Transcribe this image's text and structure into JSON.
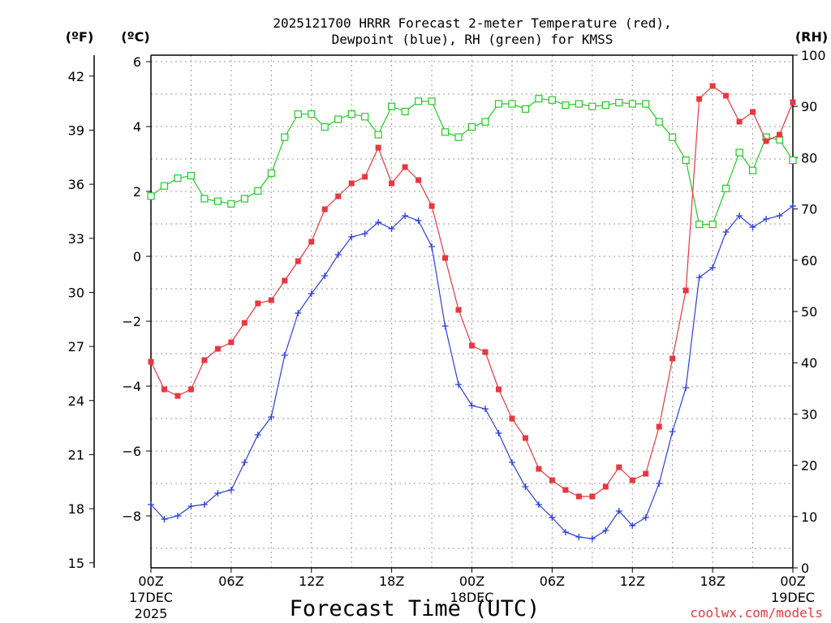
{
  "chart_data": {
    "type": "line",
    "title_line1": "2025121700 HRRR Forecast 2-meter Temperature (red),",
    "title_line2": "Dewpoint (blue), RH (green) for KMSS",
    "xlabel": "Forecast Time (UTC)",
    "credit": "coolwx.com/models",
    "units": {
      "fahrenheit": "(ºF)",
      "celsius": "(ºC)",
      "rh": "(RH)"
    },
    "colors": {
      "temperature": "#e8373f",
      "dewpoint": "#2a3fe0",
      "rh": "#22cc22",
      "axis": "#000000",
      "grid": "#9a9a9a"
    },
    "x": {
      "start_hour": 0,
      "end_hour": 48
    },
    "x_ticks": [
      {
        "hour": 0,
        "line1": "00Z",
        "line2": "17DEC",
        "line3": "2025"
      },
      {
        "hour": 6,
        "line1": "06Z",
        "line2": "",
        "line3": ""
      },
      {
        "hour": 12,
        "line1": "12Z",
        "line2": "",
        "line3": ""
      },
      {
        "hour": 18,
        "line1": "18Z",
        "line2": "",
        "line3": ""
      },
      {
        "hour": 24,
        "line1": "00Z",
        "line2": "18DEC",
        "line3": ""
      },
      {
        "hour": 30,
        "line1": "06Z",
        "line2": "",
        "line3": ""
      },
      {
        "hour": 36,
        "line1": "12Z",
        "line2": "",
        "line3": ""
      },
      {
        "hour": 42,
        "line1": "18Z",
        "line2": "",
        "line3": ""
      },
      {
        "hour": 48,
        "line1": "00Z",
        "line2": "19DEC",
        "line3": ""
      }
    ],
    "celsius_axis": {
      "ylim": [
        -9.6,
        6.2
      ],
      "ticks": [
        "6",
        "4",
        "2",
        "0",
        "−2",
        "−4",
        "−6",
        "−8"
      ],
      "tick_values": [
        6,
        4,
        2,
        0,
        -2,
        -4,
        -6,
        -8
      ]
    },
    "fahrenheit_axis": {
      "ticks": [
        "42",
        "39",
        "36",
        "33",
        "30",
        "27",
        "24",
        "21",
        "18",
        "15"
      ],
      "tick_values": [
        42,
        39,
        36,
        33,
        30,
        27,
        24,
        21,
        18,
        15
      ]
    },
    "rh_axis": {
      "ylim": [
        0,
        100
      ],
      "ticks": [
        "100",
        "90",
        "80",
        "70",
        "60",
        "50",
        "40",
        "30",
        "20",
        "10",
        "0"
      ],
      "tick_values": [
        100,
        90,
        80,
        70,
        60,
        50,
        40,
        30,
        20,
        10,
        0
      ]
    },
    "series": [
      {
        "name": "Temperature",
        "axis": "celsius",
        "marker": "square",
        "values": [
          -3.25,
          -4.1,
          -4.3,
          -4.1,
          -3.2,
          -2.85,
          -2.65,
          -2.05,
          -1.45,
          -1.35,
          -0.75,
          -0.15,
          0.45,
          1.45,
          1.85,
          2.25,
          2.45,
          3.35,
          2.25,
          2.75,
          2.35,
          1.55,
          -0.05,
          -1.65,
          -2.75,
          -2.95,
          -4.1,
          -5.0,
          -5.6,
          -6.55,
          -6.9,
          -7.2,
          -7.4,
          -7.4,
          -7.1,
          -6.5,
          -6.9,
          -6.7,
          -5.25,
          -3.15,
          -1.05,
          4.85,
          5.25,
          4.95,
          4.15,
          4.45,
          3.55,
          3.75,
          4.75
        ]
      },
      {
        "name": "Dewpoint",
        "axis": "celsius",
        "marker": "plus",
        "values": [
          -7.65,
          -8.1,
          -8.0,
          -7.7,
          -7.65,
          -7.3,
          -7.2,
          -6.35,
          -5.5,
          -4.95,
          -3.05,
          -1.75,
          -1.15,
          -0.6,
          0.05,
          0.6,
          0.7,
          1.05,
          0.85,
          1.25,
          1.1,
          0.3,
          -2.15,
          -3.95,
          -4.6,
          -4.7,
          -5.45,
          -6.35,
          -7.1,
          -7.65,
          -8.05,
          -8.5,
          -8.65,
          -8.7,
          -8.45,
          -7.85,
          -8.3,
          -8.05,
          -7.0,
          -5.4,
          -4.05,
          -0.65,
          -0.35,
          0.75,
          1.25,
          0.9,
          1.15,
          1.25,
          1.55
        ]
      },
      {
        "name": "RH",
        "axis": "rh",
        "marker": "open-square",
        "values": [
          72.5,
          74.5,
          76,
          76.5,
          72,
          71.5,
          71,
          72,
          73.5,
          77,
          84,
          88.5,
          88.5,
          86,
          87.5,
          88.5,
          88,
          84.5,
          90,
          89,
          91,
          91,
          85,
          84,
          86,
          87,
          90.5,
          90.5,
          89.5,
          91.5,
          91.25,
          90.25,
          90.5,
          90,
          90.25,
          90.75,
          90.5,
          90.5,
          87,
          84,
          79.5,
          67,
          67,
          74,
          81,
          77.5,
          84,
          83.5,
          79.5
        ]
      }
    ]
  }
}
